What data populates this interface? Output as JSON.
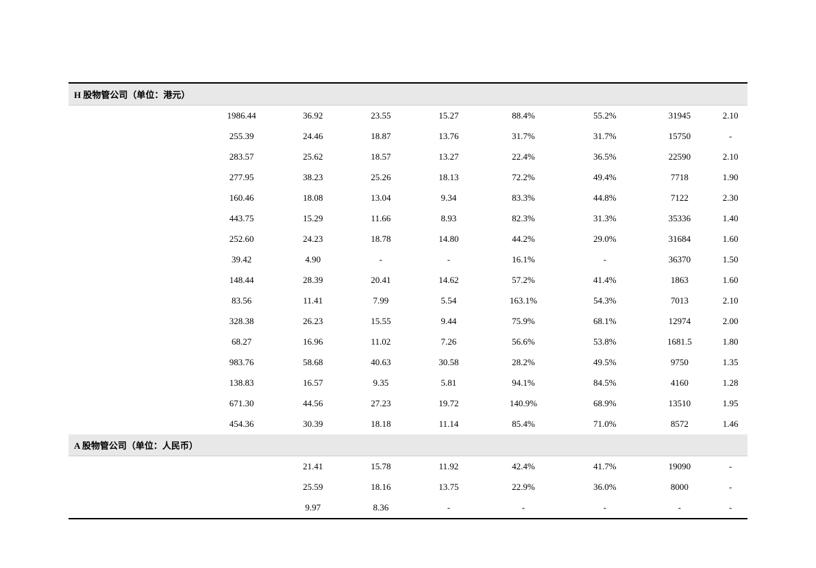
{
  "table": {
    "background_color": "#ffffff",
    "header_bg_color": "#e8e8e8",
    "border_color": "#000000",
    "text_color": "#000000",
    "font_size": 13,
    "sections": [
      {
        "title": "H 股物管公司（单位：港元）",
        "rows": [
          [
            "",
            "",
            "1986.44",
            "36.92",
            "23.55",
            "15.27",
            "88.4%",
            "55.2%",
            "31945",
            "2.10"
          ],
          [
            "",
            "",
            "255.39",
            "24.46",
            "18.87",
            "13.76",
            "31.7%",
            "31.7%",
            "15750",
            "-"
          ],
          [
            "",
            "",
            "283.57",
            "25.62",
            "18.57",
            "13.27",
            "22.4%",
            "36.5%",
            "22590",
            "2.10"
          ],
          [
            "",
            "",
            "277.95",
            "38.23",
            "25.26",
            "18.13",
            "72.2%",
            "49.4%",
            "7718",
            "1.90"
          ],
          [
            "",
            "",
            "160.46",
            "18.08",
            "13.04",
            "9.34",
            "83.3%",
            "44.8%",
            "7122",
            "2.30"
          ],
          [
            "",
            "",
            "443.75",
            "15.29",
            "11.66",
            "8.93",
            "82.3%",
            "31.3%",
            "35336",
            "1.40"
          ],
          [
            "",
            "",
            "252.60",
            "24.23",
            "18.78",
            "14.80",
            "44.2%",
            "29.0%",
            "31684",
            "1.60"
          ],
          [
            "",
            "",
            "39.42",
            "4.90",
            "-",
            "-",
            "16.1%",
            "-",
            "36370",
            "1.50"
          ],
          [
            "",
            "",
            "148.44",
            "28.39",
            "20.41",
            "14.62",
            "57.2%",
            "41.4%",
            "1863",
            "1.60"
          ],
          [
            "",
            "",
            "83.56",
            "11.41",
            "7.99",
            "5.54",
            "163.1%",
            "54.3%",
            "7013",
            "2.10"
          ],
          [
            "",
            "",
            "328.38",
            "26.23",
            "15.55",
            "9.44",
            "75.9%",
            "68.1%",
            "12974",
            "2.00"
          ],
          [
            "",
            "",
            "68.27",
            "16.96",
            "11.02",
            "7.26",
            "56.6%",
            "53.8%",
            "1681.5",
            "1.80"
          ],
          [
            "",
            "",
            "983.76",
            "58.68",
            "40.63",
            "30.58",
            "28.2%",
            "49.5%",
            "9750",
            "1.35"
          ],
          [
            "",
            "",
            "138.83",
            "16.57",
            "9.35",
            "5.81",
            "94.1%",
            "84.5%",
            "4160",
            "1.28"
          ],
          [
            "",
            "",
            "671.30",
            "44.56",
            "27.23",
            "19.72",
            "140.9%",
            "68.9%",
            "13510",
            "1.95"
          ],
          [
            "",
            "",
            "454.36",
            "30.39",
            "18.18",
            "11.14",
            "85.4%",
            "71.0%",
            "8572",
            "1.46"
          ]
        ]
      },
      {
        "title": "A 股物管公司（单位：人民币）",
        "rows": [
          [
            "",
            "",
            "",
            "21.41",
            "15.78",
            "11.92",
            "42.4%",
            "41.7%",
            "19090",
            "-"
          ],
          [
            "",
            "",
            "",
            "25.59",
            "18.16",
            "13.75",
            "22.9%",
            "36.0%",
            "8000",
            "-"
          ],
          [
            "",
            "",
            "",
            "9.97",
            "8.36",
            "-",
            "-",
            "-",
            "-",
            "-"
          ]
        ]
      }
    ]
  }
}
